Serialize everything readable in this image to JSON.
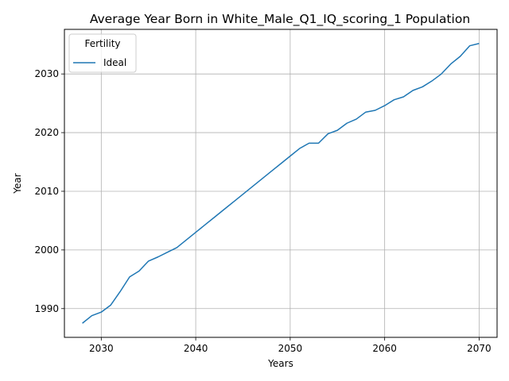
{
  "chart_data": {
    "type": "line",
    "title": "Average Year Born in White_Male_Q1_IQ_scoring_1 Population",
    "xlabel": "Years",
    "ylabel": "Year",
    "xlim": [
      2026.1,
      2071.9
    ],
    "ylim": [
      1985.1,
      2037.6
    ],
    "xticks": [
      2030,
      2040,
      2050,
      2060,
      2070
    ],
    "yticks": [
      1990,
      2000,
      2010,
      2020,
      2030
    ],
    "grid": true,
    "legend": {
      "title": "Fertility",
      "placement": "top-left"
    },
    "series": [
      {
        "name": "Ideal",
        "color": "#1f77b4",
        "x": [
          2028,
          2029,
          2030,
          2031,
          2032,
          2033,
          2034,
          2035,
          2036,
          2037,
          2038,
          2039,
          2040,
          2041,
          2042,
          2043,
          2044,
          2045,
          2046,
          2047,
          2048,
          2049,
          2050,
          2051,
          2052,
          2053,
          2054,
          2055,
          2056,
          2057,
          2058,
          2059,
          2060,
          2061,
          2062,
          2063,
          2064,
          2065,
          2066,
          2067,
          2068,
          2069,
          2070
        ],
        "y": [
          1987.5,
          1988.8,
          1989.4,
          1990.6,
          1992.9,
          1995.4,
          1996.4,
          1998.1,
          1998.8,
          1999.6,
          2000.4,
          2001.7,
          2003.0,
          2004.3,
          2005.6,
          2006.9,
          2008.2,
          2009.5,
          2010.8,
          2012.1,
          2013.4,
          2014.7,
          2016.0,
          2017.3,
          2018.2,
          2018.2,
          2019.8,
          2020.4,
          2021.6,
          2022.3,
          2023.5,
          2023.8,
          2024.6,
          2025.6,
          2026.1,
          2027.2,
          2027.8,
          2028.8,
          2030.0,
          2031.7,
          2033.0,
          2034.8,
          2035.2
        ]
      }
    ]
  }
}
